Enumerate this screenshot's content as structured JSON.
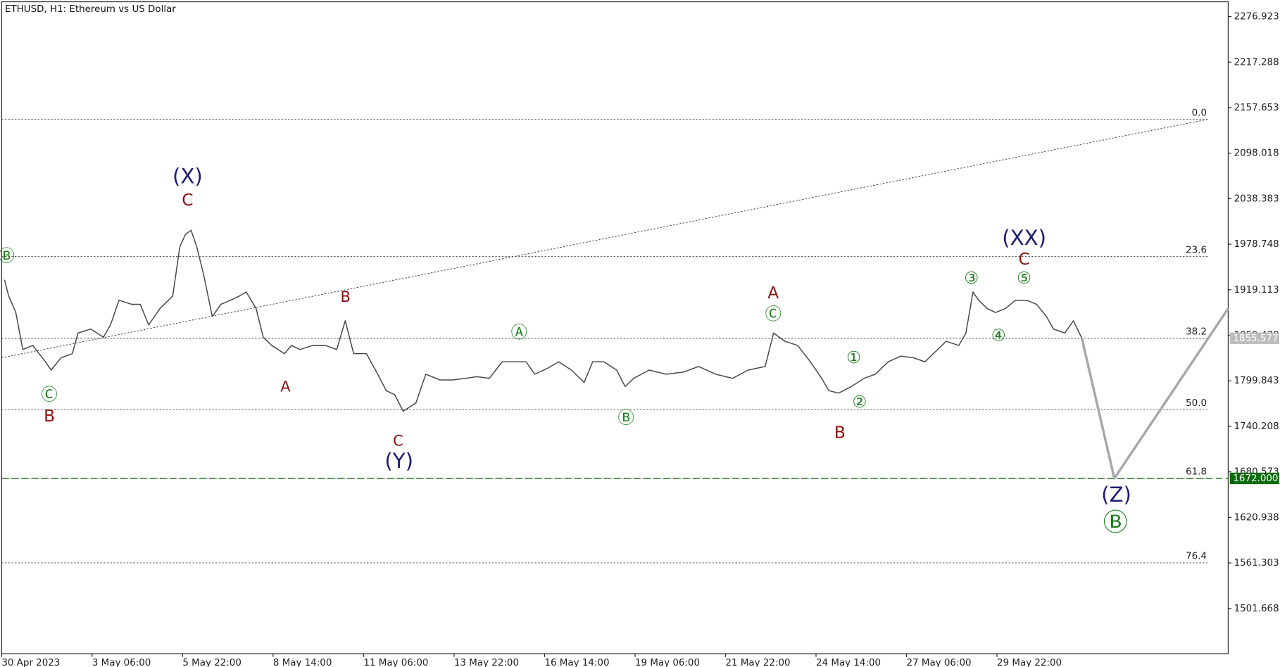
{
  "chart_data": {
    "type": "line",
    "title": "ETHUSD, H1:  Ethereum vs US Dollar",
    "xlim": [
      0,
      867.5
    ],
    "xticks": [
      {
        "value": 0,
        "label": "30 Apr 2023"
      },
      {
        "value": 64,
        "label": "3 May 06:00"
      },
      {
        "value": 128,
        "label": "5 May 22:00"
      },
      {
        "value": 192,
        "label": "8 May 14:00"
      },
      {
        "value": 256,
        "label": "11 May 06:00"
      },
      {
        "value": 320,
        "label": "13 May 22:00"
      },
      {
        "value": 384,
        "label": "16 May 14:00"
      },
      {
        "value": 448,
        "label": "19 May 06:00"
      },
      {
        "value": 512,
        "label": "21 May 22:00"
      },
      {
        "value": 576,
        "label": "24 May 14:00"
      },
      {
        "value": 640,
        "label": "27 May 06:00"
      },
      {
        "value": 704,
        "label": "29 May 22:00"
      }
    ],
    "ylim": [
      1442.4,
      2296.3
    ],
    "yticks": [
      2276.923,
      2217.288,
      2157.653,
      2098.018,
      2038.383,
      1978.748,
      1919.113,
      1859.478,
      1799.843,
      1740.208,
      1680.573,
      1620.938,
      1561.303,
      1501.668
    ],
    "series": [
      {
        "color": "#4a4a4a",
        "x": [
          2,
          5,
          10,
          15,
          22,
          31,
          35,
          42,
          50,
          54,
          63,
          72,
          77,
          83,
          92,
          98,
          104,
          112,
          121,
          126,
          130,
          134,
          138,
          143,
          149,
          155,
          162,
          168,
          173,
          180,
          185,
          191,
          200,
          205,
          211,
          220,
          229,
          237,
          243,
          249,
          258,
          266,
          272,
          278,
          284,
          293,
          300,
          310,
          319,
          328,
          336,
          345,
          354,
          362,
          371,
          377,
          386,
          394,
          403,
          412,
          418,
          426,
          435,
          441,
          447,
          458,
          470,
          482,
          493,
          505,
          517,
          528,
          540,
          546,
          554,
          563,
          572,
          580,
          585,
          592,
          601,
          610,
          618,
          627,
          636,
          645,
          653,
          662,
          668,
          677,
          682,
          687,
          691,
          697,
          703,
          710,
          717,
          725,
          732,
          739,
          744,
          752,
          758,
          764
        ],
        "values": [
          1932.3,
          1910.8,
          1889.3,
          1840.8,
          1846.2,
          1824.7,
          1813.9,
          1830.0,
          1835.4,
          1862.4,
          1867.7,
          1857.0,
          1873.1,
          1905.4,
          1900.0,
          1900.0,
          1873.1,
          1894.6,
          1910.8,
          1975.4,
          1991.6,
          1997.0,
          1975.4,
          1937.7,
          1883.9,
          1900.0,
          1905.4,
          1910.8,
          1916.2,
          1894.6,
          1857.0,
          1846.2,
          1835.4,
          1846.2,
          1840.8,
          1846.2,
          1846.2,
          1840.8,
          1878.5,
          1835.4,
          1835.4,
          1808.5,
          1787.0,
          1781.6,
          1760.0,
          1770.8,
          1808.5,
          1801.0,
          1801.0,
          1803.1,
          1805.3,
          1803.1,
          1824.7,
          1824.7,
          1824.7,
          1808.5,
          1816.1,
          1824.7,
          1813.9,
          1797.7,
          1824.7,
          1824.7,
          1813.9,
          1792.3,
          1803.1,
          1813.9,
          1808.5,
          1811.2,
          1818.6,
          1808.5,
          1803.1,
          1813.9,
          1818.6,
          1862.4,
          1851.6,
          1846.2,
          1824.7,
          1803.1,
          1787.0,
          1783.7,
          1792.3,
          1803.1,
          1808.5,
          1824.7,
          1832.2,
          1830.0,
          1824.7,
          1840.8,
          1851.6,
          1846.2,
          1862.4,
          1916.2,
          1905.4,
          1894.6,
          1889.3,
          1894.6,
          1905.4,
          1905.4,
          1900.0,
          1883.9,
          1867.7,
          1862.4,
          1878.5,
          1855.577
        ]
      },
      {
        "color": "#a8a8a8",
        "x": [
          764,
          787,
          867.5
        ],
        "values": [
          1855.577,
          1672.0,
          1894.6
        ]
      }
    ],
    "trendline": {
      "color": "#333333",
      "x": [
        0,
        853
      ],
      "values": [
        1830.0,
        2142.3
      ]
    },
    "fib_levels": [
      {
        "value": 2142.3,
        "label": "0.0"
      },
      {
        "value": 1962.6,
        "label": "23.6"
      },
      {
        "value": 1855.577,
        "label": "38.2"
      },
      {
        "value": 1762.0,
        "label": "50.0"
      },
      {
        "value": 1672.0,
        "label": "61.8"
      },
      {
        "value": 1561.4,
        "label": "76.4"
      }
    ],
    "price_lines": [
      {
        "value": 1855.577,
        "label": "1855.577",
        "color": "#bdbdbd"
      },
      {
        "value": 1672.0,
        "label": "1672.000",
        "color": "#0b6b0b"
      }
    ],
    "annotations": [
      {
        "text": "Ⓑ",
        "color": "#1f7f1f"
      },
      {
        "text": "(X)",
        "color": "#1c1c72"
      },
      {
        "text": "C",
        "color": "#8b0f0f"
      },
      {
        "text": "Ⓒ",
        "color": "#1f7f1f"
      },
      {
        "text": "B",
        "color": "#8b0f0f"
      },
      {
        "text": "B",
        "color": "#8b0f0f"
      },
      {
        "text": "A",
        "color": "#8b0f0f"
      },
      {
        "text": "C",
        "color": "#8b0f0f"
      },
      {
        "text": "(Y)",
        "color": "#1c1c72"
      },
      {
        "text": "Ⓐ",
        "color": "#1f7f1f"
      },
      {
        "text": "Ⓑ",
        "color": "#1f7f1f"
      },
      {
        "text": "A",
        "color": "#8b0f0f"
      },
      {
        "text": "Ⓒ",
        "color": "#1f7f1f"
      },
      {
        "text": "①",
        "color": "#1f7f1f"
      },
      {
        "text": "②",
        "color": "#1f7f1f"
      },
      {
        "text": "B",
        "color": "#8b0f0f"
      },
      {
        "text": "③",
        "color": "#1f7f1f"
      },
      {
        "text": "(XX)",
        "color": "#1c1c72"
      },
      {
        "text": "C",
        "color": "#8b0f0f"
      },
      {
        "text": "⑤",
        "color": "#1f7f1f"
      },
      {
        "text": "④",
        "color": "#1f7f1f"
      },
      {
        "text": "(Z)",
        "color": "#1c1c72"
      },
      {
        "text": "Ⓑ",
        "color": "#1f7f1f"
      }
    ]
  }
}
